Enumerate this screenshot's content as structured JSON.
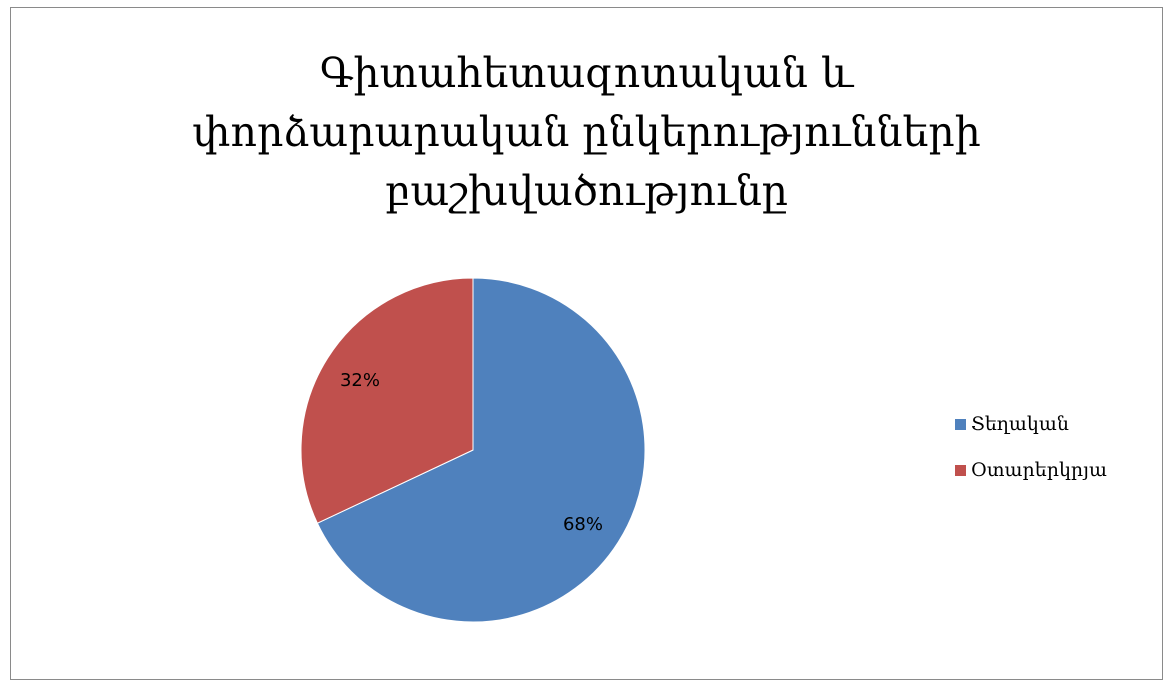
{
  "chart_data": {
    "type": "pie",
    "title_lines": [
      "Գիտահետազոտական և",
      "փորձարարական ընկերությունների",
      "բաշխվածությունը"
    ],
    "slices": [
      {
        "name": "Տեղական",
        "value": 68,
        "label": "68%",
        "color": "#4f81bd"
      },
      {
        "name": "Օտարերկրյա",
        "value": 32,
        "label": "32%",
        "color": "#c0504d"
      }
    ],
    "start_angle_deg": 0,
    "direction": "clockwise",
    "legend_position": "right"
  }
}
